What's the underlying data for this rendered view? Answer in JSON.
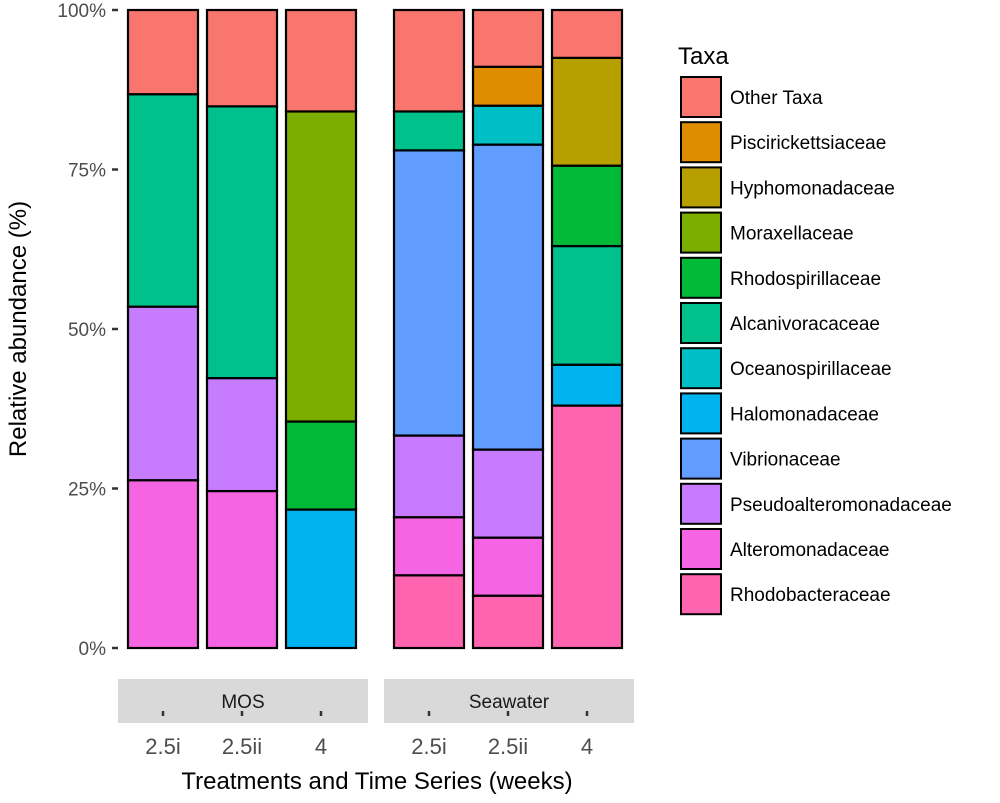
{
  "chart_data": {
    "type": "bar",
    "stacked": true,
    "title": "",
    "xlabel": "Treatments and Time Series (weeks)",
    "ylabel": "Relative abundance (%)",
    "ylim": [
      0,
      100
    ],
    "yticks": [
      {
        "value": 0,
        "label": "0%"
      },
      {
        "value": 25,
        "label": "25%"
      },
      {
        "value": 50,
        "label": "50%"
      },
      {
        "value": 75,
        "label": "75%"
      },
      {
        "value": 100,
        "label": "100%"
      }
    ],
    "legend": {
      "title": "Taxa",
      "position": "right",
      "entries": [
        {
          "name": "Other Taxa",
          "color": "#F8766D"
        },
        {
          "name": "Piscirickettsiaceae",
          "color": "#DE8C00"
        },
        {
          "name": "Hyphomonadaceae",
          "color": "#B79F00"
        },
        {
          "name": "Moraxellaceae",
          "color": "#7CAE00"
        },
        {
          "name": "Rhodospirillaceae",
          "color": "#00BA38"
        },
        {
          "name": "Alcanivoracaceae",
          "color": "#00C08B"
        },
        {
          "name": "Oceanospirillaceae",
          "color": "#00BFC4"
        },
        {
          "name": "Halomonadaceae",
          "color": "#00B4F0"
        },
        {
          "name": "Vibrionaceae",
          "color": "#619CFF"
        },
        {
          "name": "Pseudoalteromonadaceae",
          "color": "#C77CFF"
        },
        {
          "name": "Alteromonadaceae",
          "color": "#F564E3"
        },
        {
          "name": "Rhodobacteraceae",
          "color": "#FF64B0"
        }
      ]
    },
    "facets": [
      {
        "label": "MOS",
        "bars": [
          {
            "category": "2.5i",
            "segments": [
              {
                "taxon": "Alteromonadaceae",
                "value": 26.3
              },
              {
                "taxon": "Pseudoalteromonadaceae",
                "value": 27.2
              },
              {
                "taxon": "Alcanivoracaceae",
                "value": 33.3
              },
              {
                "taxon": "Other Taxa",
                "value": 13.2
              }
            ]
          },
          {
            "category": "2.5ii",
            "segments": [
              {
                "taxon": "Alteromonadaceae",
                "value": 24.6
              },
              {
                "taxon": "Pseudoalteromonadaceae",
                "value": 17.7
              },
              {
                "taxon": "Alcanivoracaceae",
                "value": 42.6
              },
              {
                "taxon": "Other Taxa",
                "value": 15.1
              }
            ]
          },
          {
            "category": "4",
            "segments": [
              {
                "taxon": "Halomonadaceae",
                "value": 21.7
              },
              {
                "taxon": "Rhodospirillaceae",
                "value": 13.8
              },
              {
                "taxon": "Moraxellaceae",
                "value": 48.6
              },
              {
                "taxon": "Other Taxa",
                "value": 15.9
              }
            ]
          }
        ]
      },
      {
        "label": "Seawater",
        "bars": [
          {
            "category": "2.5i",
            "segments": [
              {
                "taxon": "Rhodobacteraceae",
                "value": 11.4
              },
              {
                "taxon": "Alteromonadaceae",
                "value": 9.1
              },
              {
                "taxon": "Pseudoalteromonadaceae",
                "value": 12.8
              },
              {
                "taxon": "Vibrionaceae",
                "value": 44.7
              },
              {
                "taxon": "Alcanivoracaceae",
                "value": 6.1
              },
              {
                "taxon": "Other Taxa",
                "value": 15.9
              }
            ]
          },
          {
            "category": "2.5ii",
            "segments": [
              {
                "taxon": "Rhodobacteraceae",
                "value": 8.2
              },
              {
                "taxon": "Alteromonadaceae",
                "value": 9.1
              },
              {
                "taxon": "Pseudoalteromonadaceae",
                "value": 13.8
              },
              {
                "taxon": "Vibrionaceae",
                "value": 47.8
              },
              {
                "taxon": "Oceanospirillaceae",
                "value": 6.1
              },
              {
                "taxon": "Piscirickettsiaceae",
                "value": 6.1
              },
              {
                "taxon": "Other Taxa",
                "value": 8.9
              }
            ]
          },
          {
            "category": "4",
            "segments": [
              {
                "taxon": "Rhodobacteraceae",
                "value": 38.0
              },
              {
                "taxon": "Halomonadaceae",
                "value": 6.4
              },
              {
                "taxon": "Alcanivoracaceae",
                "value": 18.6
              },
              {
                "taxon": "Rhodospirillaceae",
                "value": 12.6
              },
              {
                "taxon": "Hyphomonadaceae",
                "value": 16.9
              },
              {
                "taxon": "Other Taxa",
                "value": 7.5
              }
            ]
          }
        ]
      }
    ]
  }
}
